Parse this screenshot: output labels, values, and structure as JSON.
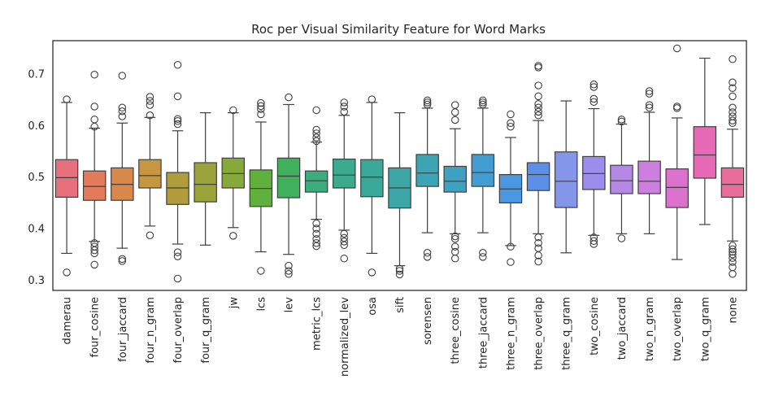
{
  "chart_data": {
    "type": "boxplot",
    "title": "Roc per Visual Similarity Feature for Word Marks",
    "xlabel": "",
    "ylabel": "",
    "ylim": [
      0.28,
      0.765
    ],
    "yticks": [
      0.3,
      0.4,
      0.5,
      0.6,
      0.7
    ],
    "ytick_labels": [
      "0.3",
      "0.4",
      "0.5",
      "0.6",
      "0.7"
    ],
    "grid": false,
    "legend": "none",
    "series": [
      {
        "name": "damerau",
        "color": "#e8707c",
        "q1": 0.461,
        "median": 0.499,
        "q3": 0.534,
        "whisker_low": 0.352,
        "whisker_high": 0.645,
        "outliers": [
          0.651,
          0.315
        ]
      },
      {
        "name": "four_cosine",
        "color": "#e37b5a",
        "q1": 0.455,
        "median": 0.482,
        "q3": 0.512,
        "whisker_low": 0.375,
        "whisker_high": 0.595,
        "outliers": [
          0.699,
          0.637,
          0.612,
          0.598,
          0.372,
          0.365,
          0.358,
          0.352,
          0.33
        ]
      },
      {
        "name": "four_jaccard",
        "color": "#d8884a",
        "q1": 0.455,
        "median": 0.486,
        "q3": 0.518,
        "whisker_low": 0.362,
        "whisker_high": 0.605,
        "outliers": [
          0.697,
          0.635,
          0.628,
          0.618,
          0.341,
          0.337
        ]
      },
      {
        "name": "four_n_gram",
        "color": "#c69740",
        "q1": 0.479,
        "median": 0.503,
        "q3": 0.534,
        "whisker_low": 0.405,
        "whisker_high": 0.616,
        "outliers": [
          0.656,
          0.648,
          0.64,
          0.62,
          0.387
        ]
      },
      {
        "name": "four_overlap",
        "color": "#b09c3a",
        "q1": 0.447,
        "median": 0.479,
        "q3": 0.509,
        "whisker_low": 0.37,
        "whisker_high": 0.59,
        "outliers": [
          0.718,
          0.657,
          0.613,
          0.609,
          0.603,
          0.354,
          0.346,
          0.303
        ]
      },
      {
        "name": "four_q_gram",
        "color": "#9ba43a",
        "q1": 0.452,
        "median": 0.486,
        "q3": 0.528,
        "whisker_low": 0.368,
        "whisker_high": 0.625,
        "outliers": []
      },
      {
        "name": "jw",
        "color": "#86a93a",
        "q1": 0.479,
        "median": 0.507,
        "q3": 0.537,
        "whisker_low": 0.402,
        "whisker_high": 0.625,
        "outliers": [
          0.63,
          0.386
        ]
      },
      {
        "name": "lcs",
        "color": "#5fb03c",
        "q1": 0.443,
        "median": 0.478,
        "q3": 0.514,
        "whisker_low": 0.355,
        "whisker_high": 0.607,
        "outliers": [
          0.644,
          0.638,
          0.632,
          0.622,
          0.318
        ]
      },
      {
        "name": "lev",
        "color": "#40b05d",
        "q1": 0.46,
        "median": 0.502,
        "q3": 0.537,
        "whisker_low": 0.35,
        "whisker_high": 0.641,
        "outliers": [
          0.655,
          0.328,
          0.318,
          0.312
        ]
      },
      {
        "name": "metric_lcs",
        "color": "#3aad7c",
        "q1": 0.471,
        "median": 0.493,
        "q3": 0.512,
        "whisker_low": 0.418,
        "whisker_high": 0.568,
        "outliers": [
          0.63,
          0.592,
          0.585,
          0.577,
          0.57,
          0.41,
          0.4,
          0.39,
          0.38,
          0.372,
          0.366
        ]
      },
      {
        "name": "normalized_lev",
        "color": "#3aab8d",
        "q1": 0.479,
        "median": 0.504,
        "q3": 0.535,
        "whisker_low": 0.397,
        "whisker_high": 0.62,
        "outliers": [
          0.645,
          0.637,
          0.627,
          0.39,
          0.382,
          0.375,
          0.368,
          0.342
        ]
      },
      {
        "name": "osa",
        "color": "#3ba99a",
        "q1": 0.462,
        "median": 0.5,
        "q3": 0.534,
        "whisker_low": 0.352,
        "whisker_high": 0.645,
        "outliers": [
          0.651,
          0.315
        ]
      },
      {
        "name": "sift",
        "color": "#3ca7a6",
        "q1": 0.44,
        "median": 0.479,
        "q3": 0.518,
        "whisker_low": 0.328,
        "whisker_high": 0.625,
        "outliers": [
          0.322,
          0.318,
          0.311
        ]
      },
      {
        "name": "sorensen",
        "color": "#3da4b4",
        "q1": 0.482,
        "median": 0.508,
        "q3": 0.544,
        "whisker_low": 0.392,
        "whisker_high": 0.634,
        "outliers": [
          0.649,
          0.645,
          0.641,
          0.353,
          0.345
        ]
      },
      {
        "name": "three_cosine",
        "color": "#3ea1c1",
        "q1": 0.471,
        "median": 0.492,
        "q3": 0.521,
        "whisker_low": 0.39,
        "whisker_high": 0.594,
        "outliers": [
          0.64,
          0.626,
          0.611,
          0.385,
          0.38,
          0.365,
          0.355,
          0.342
        ]
      },
      {
        "name": "three_jaccard",
        "color": "#419dd2",
        "q1": 0.482,
        "median": 0.509,
        "q3": 0.544,
        "whisker_low": 0.392,
        "whisker_high": 0.634,
        "outliers": [
          0.649,
          0.645,
          0.641,
          0.353,
          0.345
        ]
      },
      {
        "name": "three_n_gram",
        "color": "#4a97e2",
        "q1": 0.45,
        "median": 0.477,
        "q3": 0.505,
        "whisker_low": 0.367,
        "whisker_high": 0.577,
        "outliers": [
          0.622,
          0.605,
          0.598,
          0.365,
          0.335
        ]
      },
      {
        "name": "three_overlap",
        "color": "#5b8fe8",
        "q1": 0.474,
        "median": 0.505,
        "q3": 0.528,
        "whisker_low": 0.39,
        "whisker_high": 0.61,
        "outliers": [
          0.716,
          0.713,
          0.678,
          0.657,
          0.642,
          0.635,
          0.627,
          0.62,
          0.383,
          0.372,
          0.362,
          0.348,
          0.336
        ]
      },
      {
        "name": "three_q_gram",
        "color": "#8396ea",
        "q1": 0.441,
        "median": 0.492,
        "q3": 0.549,
        "whisker_low": 0.353,
        "whisker_high": 0.648,
        "outliers": []
      },
      {
        "name": "two_cosine",
        "color": "#9c8ceb",
        "q1": 0.476,
        "median": 0.507,
        "q3": 0.54,
        "whisker_low": 0.387,
        "whisker_high": 0.633,
        "outliers": [
          0.68,
          0.675,
          0.652,
          0.646,
          0.383,
          0.376,
          0.37
        ]
      },
      {
        "name": "two_jaccard",
        "color": "#b688e6",
        "q1": 0.468,
        "median": 0.493,
        "q3": 0.523,
        "whisker_low": 0.39,
        "whisker_high": 0.603,
        "outliers": [
          0.612,
          0.608,
          0.381
        ]
      },
      {
        "name": "two_n_gram",
        "color": "#cc7fde",
        "q1": 0.468,
        "median": 0.492,
        "q3": 0.531,
        "whisker_low": 0.39,
        "whisker_high": 0.626,
        "outliers": [
          0.667,
          0.662,
          0.64,
          0.635
        ]
      },
      {
        "name": "two_overlap",
        "color": "#dc72cd",
        "q1": 0.441,
        "median": 0.48,
        "q3": 0.516,
        "whisker_low": 0.34,
        "whisker_high": 0.615,
        "outliers": [
          0.75,
          0.637,
          0.634
        ]
      },
      {
        "name": "two_q_gram",
        "color": "#e66ab5",
        "q1": 0.498,
        "median": 0.543,
        "q3": 0.598,
        "whisker_low": 0.408,
        "whisker_high": 0.731,
        "outliers": []
      },
      {
        "name": "none",
        "color": "#ea6d9c",
        "q1": 0.461,
        "median": 0.486,
        "q3": 0.518,
        "whisker_low": 0.376,
        "whisker_high": 0.593,
        "outliers": [
          0.729,
          0.684,
          0.673,
          0.657,
          0.635,
          0.626,
          0.618,
          0.61,
          0.605,
          0.367,
          0.36,
          0.355,
          0.35,
          0.343,
          0.335,
          0.325,
          0.312
        ]
      }
    ]
  }
}
